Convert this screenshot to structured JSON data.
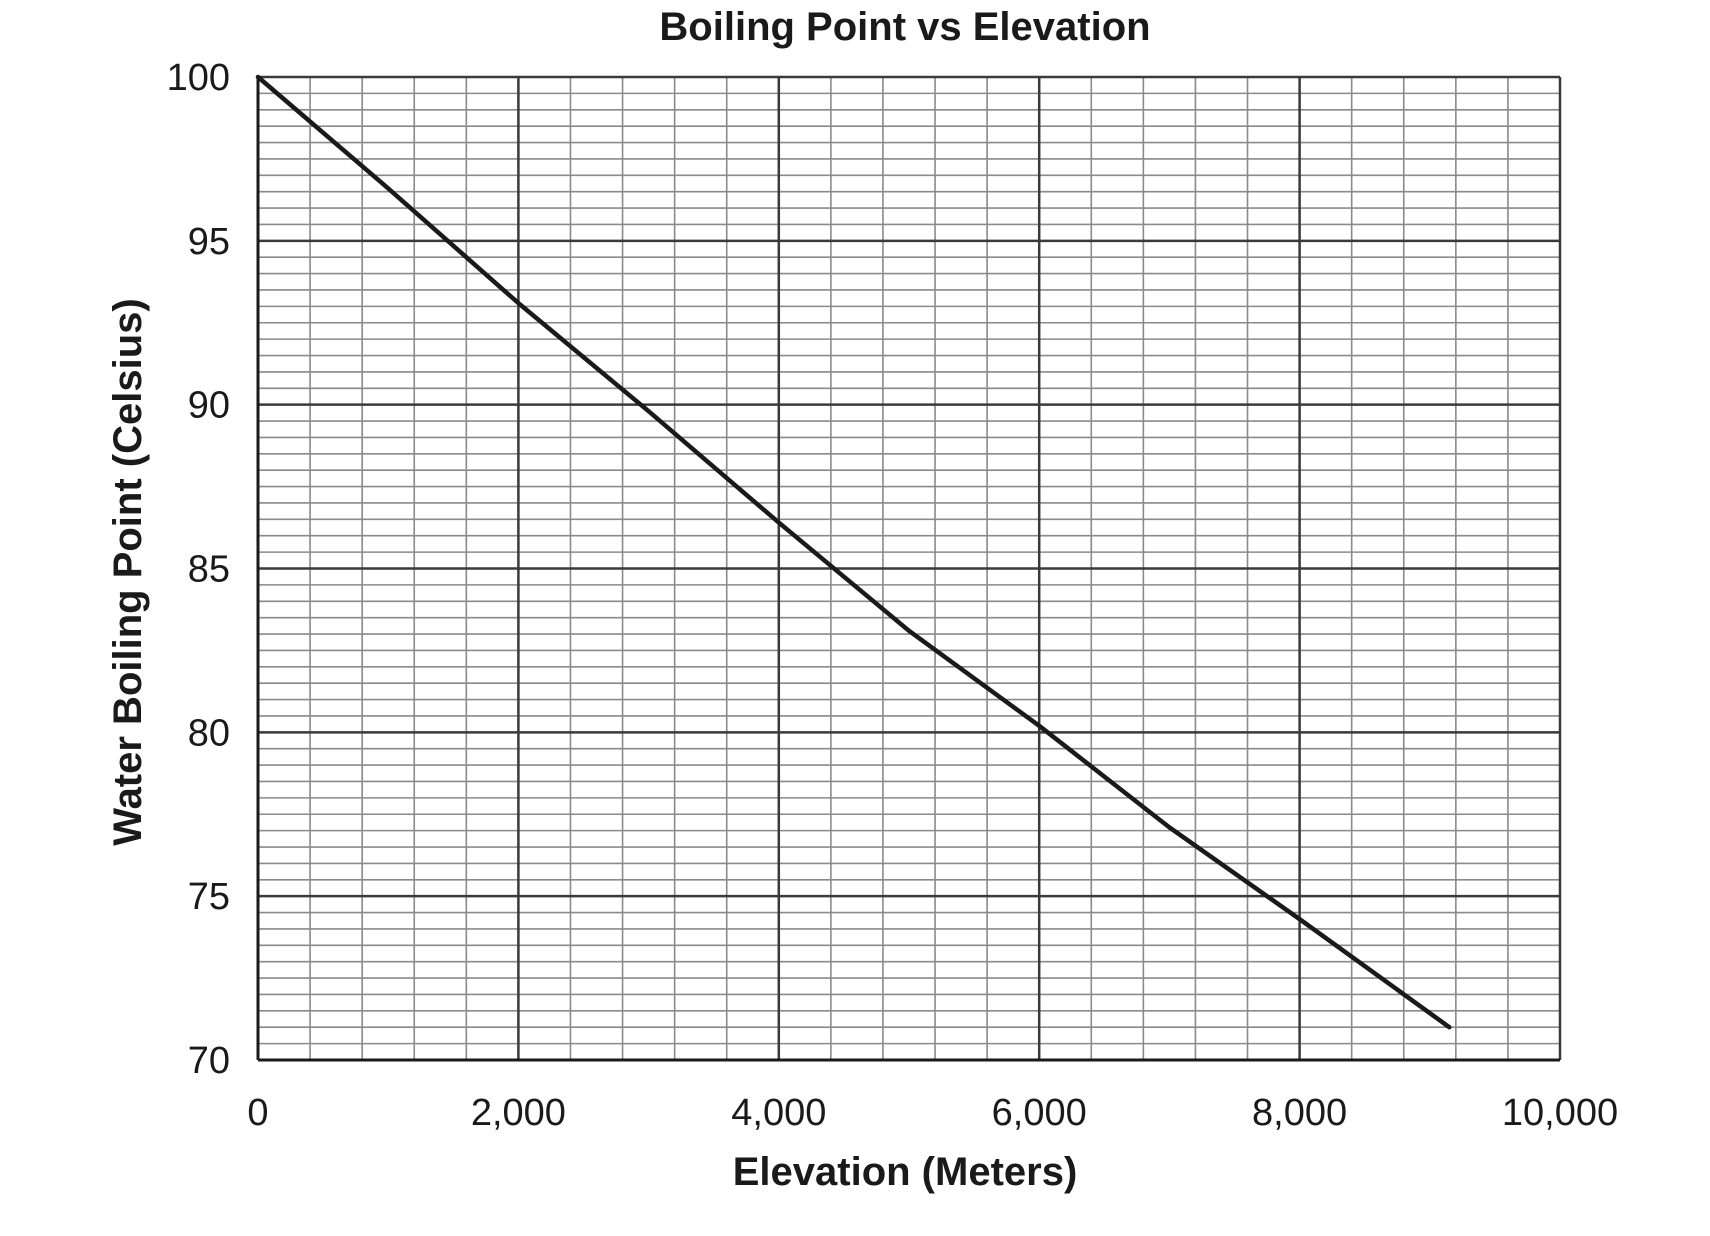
{
  "chart_data": {
    "type": "line",
    "title": "Boiling Point vs Elevation",
    "xlabel": "Elevation (Meters)",
    "ylabel": "Water Boiling Point (Celsius)",
    "xlim": [
      0,
      10000
    ],
    "ylim": [
      70,
      100
    ],
    "x_ticks": [
      "0",
      "2,000",
      "4,000",
      "6,000",
      "8,000",
      "10,000"
    ],
    "y_ticks": [
      "70",
      "75",
      "80",
      "85",
      "90",
      "95",
      "100"
    ],
    "x_tick_values": [
      0,
      2000,
      4000,
      6000,
      8000,
      10000
    ],
    "y_tick_values": [
      70,
      75,
      80,
      85,
      90,
      95,
      100
    ],
    "grid": true,
    "line_color": "#1a1a1a",
    "series": [
      {
        "x": [
          0,
          1000,
          2000,
          3000,
          4000,
          5000,
          6000,
          7000,
          8000,
          9150
        ],
        "values": [
          100,
          96.6,
          93.1,
          89.8,
          86.4,
          83.1,
          80.2,
          77.1,
          74.3,
          71.0
        ]
      }
    ]
  }
}
